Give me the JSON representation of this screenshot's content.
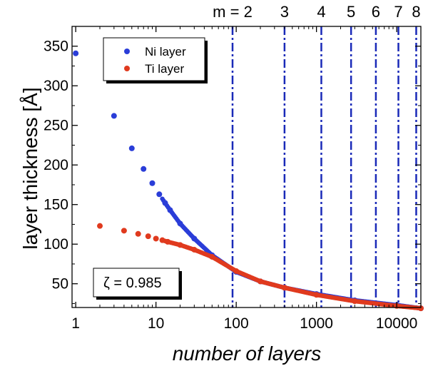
{
  "chart_data": {
    "type": "scatter",
    "xlabel": "number of layers",
    "ylabel": "layer thickness [Å]",
    "x_scale": "log",
    "xlim": [
      0.9,
      20000
    ],
    "ylim": [
      20,
      375
    ],
    "x_ticks": [
      1,
      10,
      100,
      1000,
      10000
    ],
    "x_tick_labels": [
      "1",
      "10",
      "100",
      "1000",
      "10000"
    ],
    "y_ticks": [
      50,
      100,
      150,
      200,
      250,
      300,
      350
    ],
    "y_tick_labels": [
      "50",
      "100",
      "150",
      "200",
      "250",
      "300",
      "350"
    ],
    "grid": false,
    "legend_position": "top-left",
    "annotation": "ζ = 0.985",
    "series": [
      {
        "name": "Ni layer",
        "color": "#2a3dd8",
        "x": [
          1,
          3,
          5,
          7,
          9,
          11,
          13,
          15,
          20,
          30,
          50,
          100,
          200,
          400,
          1000,
          3000,
          10000,
          20000
        ],
        "values": [
          341,
          262,
          221,
          195,
          177,
          163,
          152,
          143,
          126,
          107,
          86,
          65,
          53,
          45,
          37,
          29,
          23,
          19
        ]
      },
      {
        "name": "Ti layer",
        "color": "#e03a1e",
        "x": [
          2,
          4,
          6,
          8,
          10,
          12,
          14,
          20,
          30,
          50,
          100,
          200,
          400,
          1000,
          3000,
          10000,
          20000
        ],
        "values": [
          123,
          117,
          113,
          110,
          107,
          105,
          103,
          99,
          93,
          84,
          66,
          53,
          45,
          36,
          28,
          22,
          19
        ]
      }
    ],
    "reference_lines": [
      {
        "label": "m = 2",
        "x": 90
      },
      {
        "label": "3",
        "x": 400
      },
      {
        "label": "4",
        "x": 1150
      },
      {
        "label": "5",
        "x": 2700
      },
      {
        "label": "6",
        "x": 5500
      },
      {
        "label": "7",
        "x": 10500
      },
      {
        "label": "8",
        "x": 17500
      }
    ],
    "reference_line_color": "#1a2ab8"
  }
}
